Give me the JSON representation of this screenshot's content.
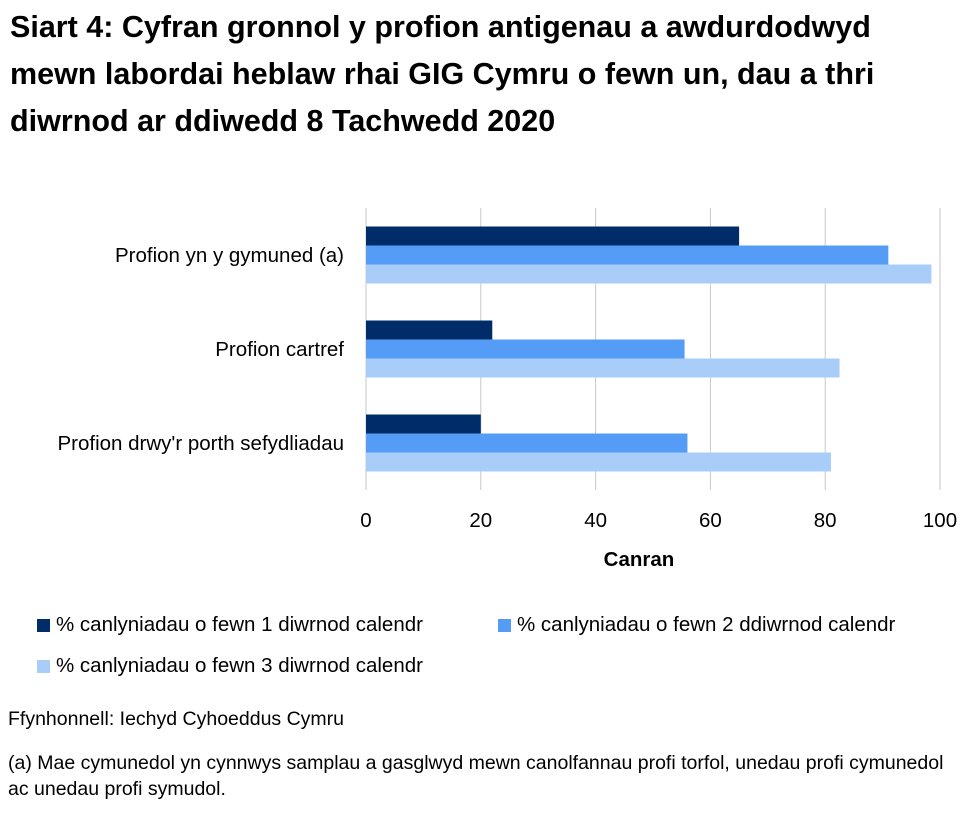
{
  "chart_data": {
    "type": "bar",
    "orientation": "horizontal",
    "title": "Siart 4: Cyfran gronnol y profion antigenau a awdurdodwyd mewn labordai heblaw rhai GIG Cymru o fewn un, dau a thri diwrnod ar ddiwedd 8 Tachwedd 2020",
    "categories": [
      "Profion yn y gymuned (a)",
      "Profion cartref",
      "Profion drwy'r porth sefydliadau"
    ],
    "series": [
      {
        "name": "% canlyniadau o fewn 1 diwrnod calendr",
        "color": "#002d6a",
        "values": [
          65,
          22,
          20
        ]
      },
      {
        "name": "% canlyniadau o fewn 2 ddiwrnod calendr",
        "color": "#559cf6",
        "values": [
          91,
          55.5,
          56
        ]
      },
      {
        "name": "% canlyniadau o fewn 3 diwrnod calendr",
        "color": "#a8cdf9",
        "values": [
          98.5,
          82.5,
          81
        ]
      }
    ],
    "xlabel": "Canran",
    "ylabel": "",
    "xlim": [
      0,
      100
    ],
    "xticks": [
      "0",
      "20",
      "40",
      "60",
      "80",
      "100"
    ],
    "grid": true,
    "legend_position": "bottom"
  },
  "source": "Ffynhonnell: Iechyd Cyhoeddus Cymru",
  "footnote": "(a) Mae cymunedol yn cynnwys samplau a gasglwyd mewn canolfannau profi torfol, unedau profi cymunedol ac unedau profi symudol."
}
